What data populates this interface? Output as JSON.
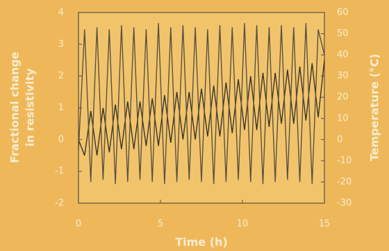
{
  "chart_data": {
    "type": "line",
    "xlabel": "Time (h)",
    "ylabel": [
      "Fractional change",
      "in resistivity"
    ],
    "y2label": "Temperature (°C)",
    "x": [
      0,
      0.375,
      0.75,
      1.125,
      1.5,
      1.875,
      2.25,
      2.625,
      3,
      3.375,
      3.75,
      4.125,
      4.5,
      4.875,
      5.25,
      5.625,
      6,
      6.375,
      6.75,
      7.125,
      7.5,
      7.875,
      8.25,
      8.625,
      9,
      9.375,
      9.75,
      10.125,
      10.5,
      10.875,
      11.25,
      11.625,
      12,
      12.375,
      12.75,
      13.125,
      13.5,
      13.875,
      14.25,
      14.625,
      15
    ],
    "series": [
      {
        "color": "#3a3328",
        "values": [
          0,
          -0.5,
          0.9,
          -0.5,
          1.0,
          -0.4,
          1.1,
          -0.3,
          1.2,
          -0.3,
          1.2,
          -0.2,
          1.3,
          -0.2,
          1.4,
          -0.1,
          1.5,
          0,
          1.5,
          0,
          1.6,
          0.1,
          1.7,
          0.1,
          1.8,
          0.2,
          1.9,
          0.3,
          2.0,
          0.3,
          2.1,
          0.4,
          2.1,
          0.5,
          2.2,
          0.5,
          2.3,
          0.6,
          2.4,
          0.7,
          2.5
        ]
      },
      {
        "color": "#5a5040",
        "axis": "y2",
        "values": [
          -5,
          52,
          -20,
          53,
          -19,
          52,
          -21,
          54,
          -20,
          53,
          -19,
          52,
          -20,
          55,
          -21,
          53,
          -20,
          54,
          -19,
          53,
          -20,
          52,
          -21,
          54,
          -20,
          53,
          -19,
          55,
          -20,
          54,
          -21,
          53,
          -20,
          54,
          -19,
          53,
          -20,
          55,
          -21,
          52,
          40
        ]
      }
    ],
    "xlim": [
      0,
      15
    ],
    "xticks": [
      0,
      5,
      10,
      15
    ],
    "ylim": [
      -2,
      4
    ],
    "yticks": [
      -2,
      -1,
      0,
      1,
      2,
      3,
      4
    ],
    "y2lim": [
      -30,
      60
    ],
    "y2ticks": [
      -30,
      -20,
      -10,
      0,
      10,
      20,
      30,
      40,
      50,
      60
    ]
  }
}
